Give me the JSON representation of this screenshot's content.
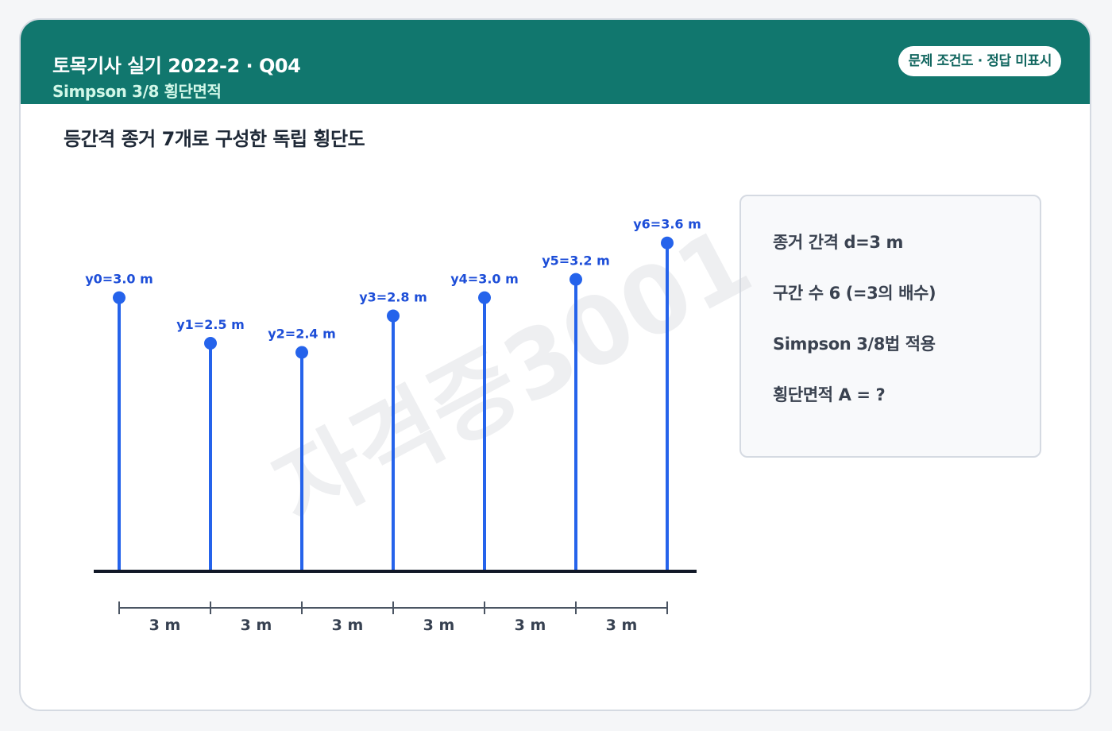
{
  "header": {
    "title": "토목기사 실기 2022-2 · Q04",
    "subtitle": "Simpson 3/8 횡단면적",
    "badge": "문제 조건도 · 정답 미표시"
  },
  "section_title": "등간격 종거 7개로 구성한 독립 횡단도",
  "watermark": "자격증3001",
  "diagram": {
    "ordinates": [
      {
        "label": "y0=3.0 m",
        "value": 3.0
      },
      {
        "label": "y1=2.5 m",
        "value": 2.5
      },
      {
        "label": "y2=2.4 m",
        "value": 2.4
      },
      {
        "label": "y3=2.8 m",
        "value": 2.8
      },
      {
        "label": "y4=3.0 m",
        "value": 3.0
      },
      {
        "label": "y5=3.2 m",
        "value": 3.2
      },
      {
        "label": "y6=3.6 m",
        "value": 3.6
      }
    ],
    "intervals": [
      "3 m",
      "3 m",
      "3 m",
      "3 m",
      "3 m",
      "3 m"
    ],
    "colors": {
      "ordinate": "#2563eb",
      "label": "#1d4ed8",
      "baseline": "#111827",
      "dimension": "#4b5563"
    }
  },
  "info": {
    "lines": [
      "종거 간격 d=3 m",
      "구간 수 6 (=3의 배수)",
      "Simpson 3/8법 적용",
      "횡단면적 A = ?"
    ]
  }
}
